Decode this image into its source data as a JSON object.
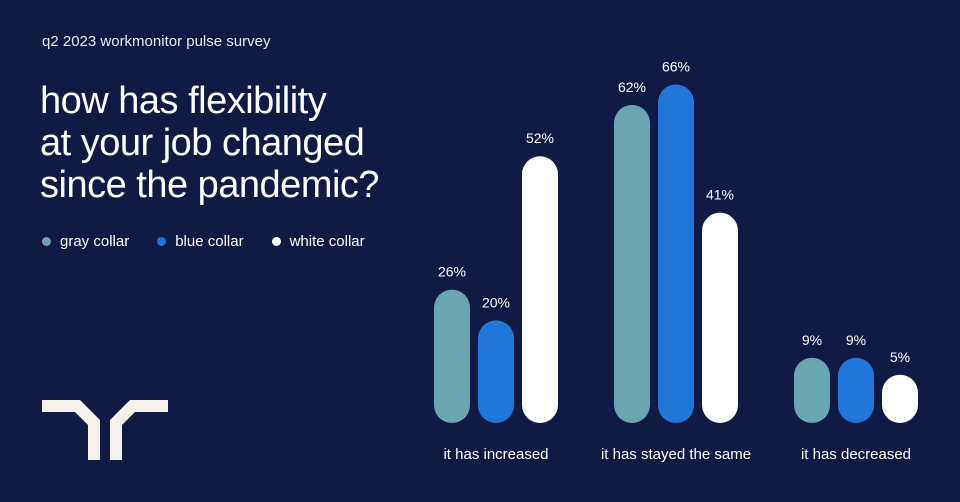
{
  "header": {
    "subtitle": "q2 2023 workmonitor pulse survey"
  },
  "chart_data": {
    "type": "bar",
    "title": "how has flexibility at your job changed since the pandemic?",
    "title_lines": [
      "how has flexibility",
      "at your job changed",
      "since the pandemic?"
    ],
    "categories": [
      "it has increased",
      "it has stayed the same",
      "it has decreased"
    ],
    "series": [
      {
        "name": "gray collar",
        "color": "#6aa5b0",
        "values": [
          26,
          62,
          9
        ]
      },
      {
        "name": "blue collar",
        "color": "#2176d9",
        "values": [
          20,
          66,
          9
        ]
      },
      {
        "name": "white collar",
        "color": "#ffffff",
        "values": [
          52,
          41,
          5
        ]
      }
    ],
    "value_suffix": "%",
    "legend_placement": "top-left",
    "grid": false
  },
  "colors": {
    "background": "#111a44",
    "logo": "#f3f1ea"
  }
}
